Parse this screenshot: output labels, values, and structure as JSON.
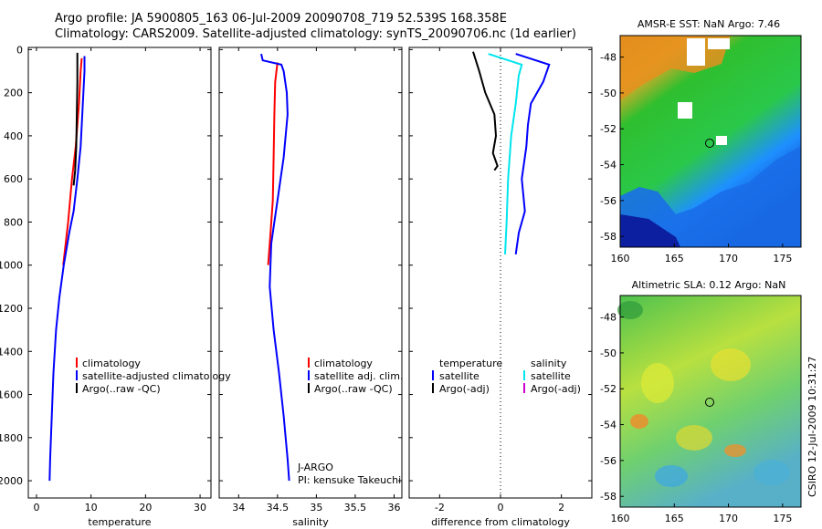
{
  "header": {
    "title_line1": "Argo profile: JA 5900805_163 06-Jul-2009 20090708_719 52.539S 168.358E",
    "title_line2": "Climatology: CARS2009. Satellite-adjusted climatology: synTS_20090706.nc (1d earlier)"
  },
  "colors": {
    "climatology": "#ff0000",
    "satellite": "#0000ff",
    "argo": "#000000",
    "satellite_salinity": "#00e5ee",
    "argo_salinity": "#cc00cc"
  },
  "chart_data": [
    {
      "type": "line",
      "name": "temperature-profile",
      "xlabel": "temperature",
      "xlim": [
        -1.5,
        32
      ],
      "ylim": [
        2080,
        -10
      ],
      "xticks": [
        "0",
        "10",
        "20",
        "30"
      ],
      "yticks": [
        "0",
        "200",
        "400",
        "600",
        "800",
        "1000",
        "1200",
        "1400",
        "1600",
        "1800",
        "2000"
      ],
      "series": [
        {
          "name": "climatology",
          "color": "#ff0000",
          "points": [
            [
              8.3,
              40
            ],
            [
              8.1,
              100
            ],
            [
              7.8,
              250
            ],
            [
              7.2,
              450
            ],
            [
              6.5,
              600
            ],
            [
              5.8,
              800
            ],
            [
              4.9,
              1000
            ]
          ]
        },
        {
          "name": "satellite-adjusted climatology",
          "color": "#0000ff",
          "points": [
            [
              8.8,
              30
            ],
            [
              8.8,
              100
            ],
            [
              8.5,
              250
            ],
            [
              8.1,
              450
            ],
            [
              7.5,
              600
            ],
            [
              6.8,
              750
            ],
            [
              6.0,
              850
            ],
            [
              5.0,
              1000
            ],
            [
              4.2,
              1150
            ],
            [
              3.6,
              1300
            ],
            [
              3.1,
              1500
            ],
            [
              2.8,
              1700
            ],
            [
              2.5,
              1900
            ],
            [
              2.4,
              2000
            ]
          ]
        },
        {
          "name": "Argo(..raw -QC)",
          "color": "#000000",
          "points": [
            [
              7.5,
              15
            ],
            [
              7.5,
              150
            ],
            [
              7.4,
              300
            ],
            [
              7.3,
              450
            ],
            [
              7.1,
              560
            ],
            [
              6.8,
              630
            ]
          ]
        }
      ],
      "legend": [
        "climatology",
        "satellite-adjusted climatology",
        "Argo(..raw -QC)"
      ]
    },
    {
      "type": "line",
      "name": "salinity-profile",
      "xlabel": "salinity",
      "xlim": [
        33.75,
        36.1
      ],
      "ylim": [
        2080,
        -10
      ],
      "xticks": [
        "34",
        "34.5",
        "35",
        "35.5",
        "36"
      ],
      "series": [
        {
          "name": "climatology",
          "color": "#ff0000",
          "points": [
            [
              34.5,
              60
            ],
            [
              34.47,
              150
            ],
            [
              34.46,
              300
            ],
            [
              34.45,
              500
            ],
            [
              34.44,
              700
            ],
            [
              34.41,
              850
            ],
            [
              34.38,
              1000
            ]
          ]
        },
        {
          "name": "satellite adj. clim.",
          "color": "#0000ff",
          "points": [
            [
              34.29,
              20
            ],
            [
              34.31,
              50
            ],
            [
              34.55,
              70
            ],
            [
              34.58,
              100
            ],
            [
              34.62,
              200
            ],
            [
              34.63,
              300
            ],
            [
              34.58,
              500
            ],
            [
              34.5,
              700
            ],
            [
              34.42,
              900
            ],
            [
              34.4,
              1100
            ],
            [
              34.45,
              1300
            ],
            [
              34.52,
              1500
            ],
            [
              34.58,
              1700
            ],
            [
              34.63,
              1900
            ],
            [
              34.65,
              2000
            ]
          ]
        },
        {
          "name": "Argo(..raw -QC)",
          "color": "#000000",
          "points": []
        }
      ],
      "legend": [
        "climatology",
        "satellite adj. clim.",
        "Argo(..raw -QC)"
      ],
      "annotation": [
        "J-ARGO",
        "PI: kensuke Takeuchi"
      ]
    },
    {
      "type": "line",
      "name": "difference-profile",
      "xlabel": "difference from climatology",
      "xlim": [
        -3,
        3
      ],
      "ylim": [
        2080,
        -10
      ],
      "xticks": [
        "-2",
        "0",
        "2"
      ],
      "series": [
        {
          "name": "temperature satellite",
          "color": "#0000ff",
          "points": [
            [
              0.5,
              20
            ],
            [
              1.6,
              70
            ],
            [
              1.4,
              150
            ],
            [
              1.0,
              250
            ],
            [
              0.9,
              350
            ],
            [
              0.85,
              450
            ],
            [
              0.7,
              600
            ],
            [
              0.8,
              750
            ],
            [
              0.6,
              850
            ],
            [
              0.5,
              950
            ]
          ]
        },
        {
          "name": "temperature Argo(-adj)",
          "color": "#000000",
          "points": [
            [
              -0.9,
              10
            ],
            [
              -0.7,
              100
            ],
            [
              -0.5,
              200
            ],
            [
              -0.2,
              300
            ],
            [
              -0.15,
              400
            ],
            [
              -0.25,
              480
            ],
            [
              -0.1,
              540
            ],
            [
              -0.2,
              560
            ]
          ]
        },
        {
          "name": "salinity satellite",
          "color": "#00e5ee",
          "points": [
            [
              -0.4,
              20
            ],
            [
              0.7,
              70
            ],
            [
              0.6,
              120
            ],
            [
              0.5,
              250
            ],
            [
              0.35,
              400
            ],
            [
              0.25,
              600
            ],
            [
              0.2,
              800
            ],
            [
              0.15,
              950
            ]
          ]
        },
        {
          "name": "salinity Argo(-adj)",
          "color": "#cc00cc",
          "points": []
        }
      ],
      "legend_columns": [
        "temperature",
        "salinity"
      ],
      "legend_temperature": [
        "satellite",
        "Argo(-adj)"
      ],
      "legend_salinity": [
        "satellite",
        "Argo(-adj)"
      ]
    },
    {
      "type": "heatmap",
      "name": "sst-map",
      "title": "AMSR-E SST: NaN Argo: 7.46",
      "xticks": [
        "160",
        "165",
        "170",
        "175"
      ],
      "yticks": [
        "-48",
        "-50",
        "-52",
        "-54",
        "-56",
        "-58"
      ],
      "marker": {
        "lon": 168.358,
        "lat": -52.539
      }
    },
    {
      "type": "heatmap",
      "name": "sla-map",
      "title": "Altimetric SLA: 0.12 Argo: NaN",
      "xticks": [
        "160",
        "165",
        "170",
        "175"
      ],
      "yticks": [
        "-48",
        "-50",
        "-52",
        "-54",
        "-56",
        "-58"
      ],
      "marker": {
        "lon": 168.358,
        "lat": -52.539
      }
    }
  ],
  "stamp": "CSIRO 12-Jul-2009 10:31:27"
}
